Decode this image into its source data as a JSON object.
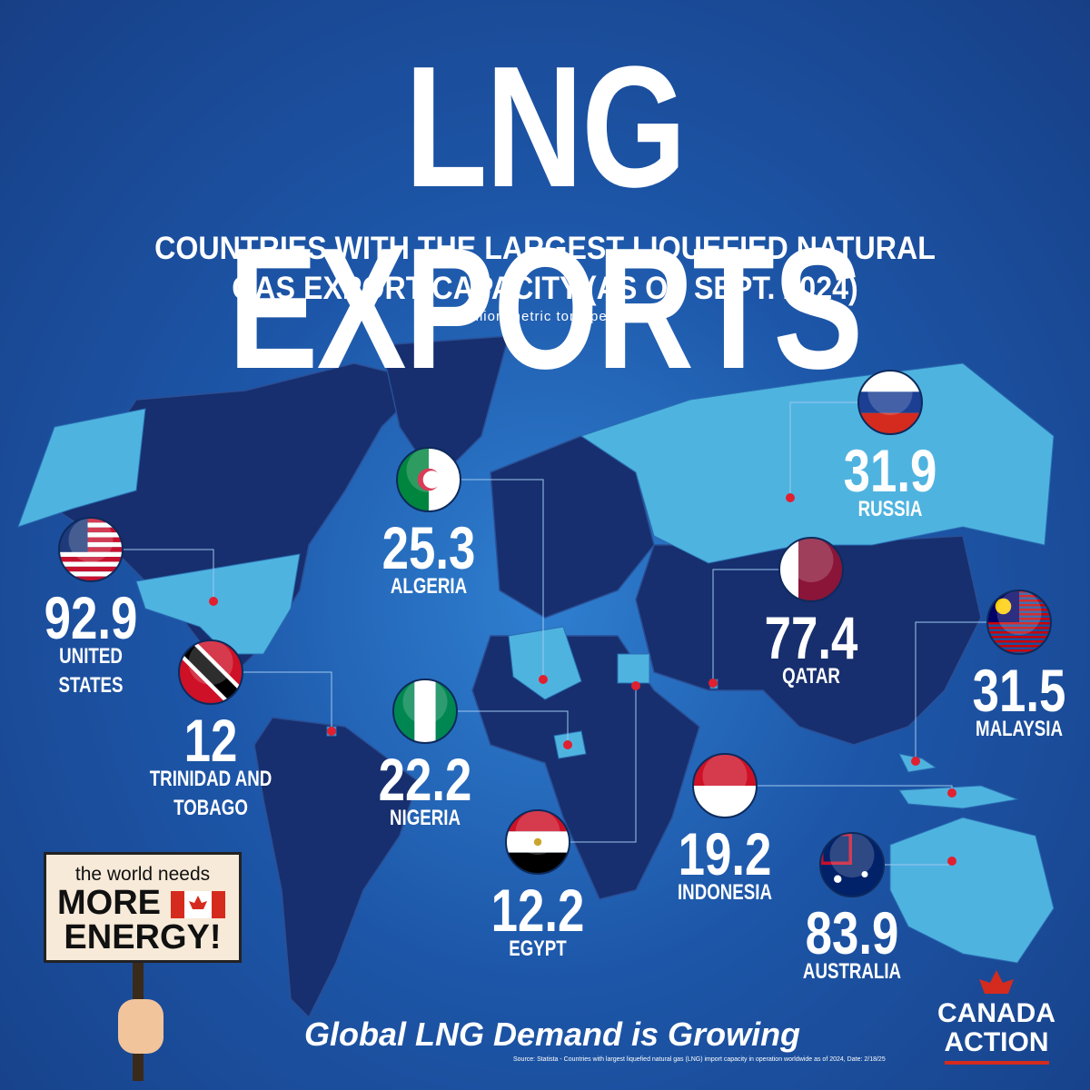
{
  "header": {
    "title": "LNG EXPORTS",
    "subtitle": "COUNTRIES WITH THE LARGEST LIQUEFIED NATURAL GAS EXPORT CAPACITY (AS OF SEPT. 2024)",
    "unit": "(in million metric tons per year)"
  },
  "countries": [
    {
      "name": "UNITED STATES",
      "value": 92.9
    },
    {
      "name": "ALGERIA",
      "value": 25.3
    },
    {
      "name": "RUSSIA",
      "value": 31.9
    },
    {
      "name": "QATAR",
      "value": 77.4
    },
    {
      "name": "MALAYSIA",
      "value": 31.5
    },
    {
      "name": "TRINIDAD AND TOBAGO",
      "value": 12
    },
    {
      "name": "NIGERIA",
      "value": 22.2
    },
    {
      "name": "EGYPT",
      "value": 12.2
    },
    {
      "name": "INDONESIA",
      "value": 19.2
    },
    {
      "name": "AUSTRALIA",
      "value": 83.9
    }
  ],
  "sign": {
    "line1": "the world needs",
    "line2": "MORE",
    "line3": "ENERGY!"
  },
  "footer": {
    "tagline": "Global LNG Demand is Growing",
    "source": "Source: Statista - Countries with largest liquefied natural gas (LNG) import capacity in operation worldwide as of 2024, Date: 2/18/25"
  },
  "logo": {
    "line1": "CANADA",
    "line2": "ACTION"
  }
}
